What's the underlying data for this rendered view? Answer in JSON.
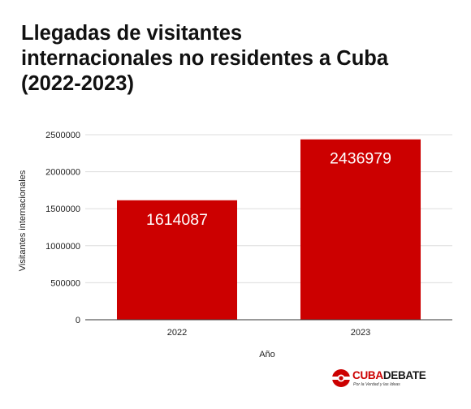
{
  "title_lines": [
    "Llegadas de visitantes",
    "internacionales no residentes a Cuba",
    "(2022-2023)"
  ],
  "chart_data": {
    "type": "bar",
    "title": "Llegadas de visitantes internacionales no residentes a Cuba (2022-2023)",
    "xlabel": "Año",
    "ylabel": "Visitantes internacionales",
    "categories": [
      "2022",
      "2023"
    ],
    "values": [
      1614087,
      2436979
    ],
    "data_labels": [
      "1614087",
      "2436979"
    ],
    "yticks": [
      "0",
      "500000",
      "1000000",
      "1500000",
      "2000000",
      "2500000"
    ],
    "ylim": [
      0,
      2500000
    ],
    "grid": true,
    "legend": "none",
    "bar_color": "#cc0000"
  },
  "logo": {
    "brand_part1": "CUBA",
    "brand_part2": "DEBATE",
    "tagline": "Por la Verdad y las Ideas",
    "brand_color": "#cc0000"
  }
}
